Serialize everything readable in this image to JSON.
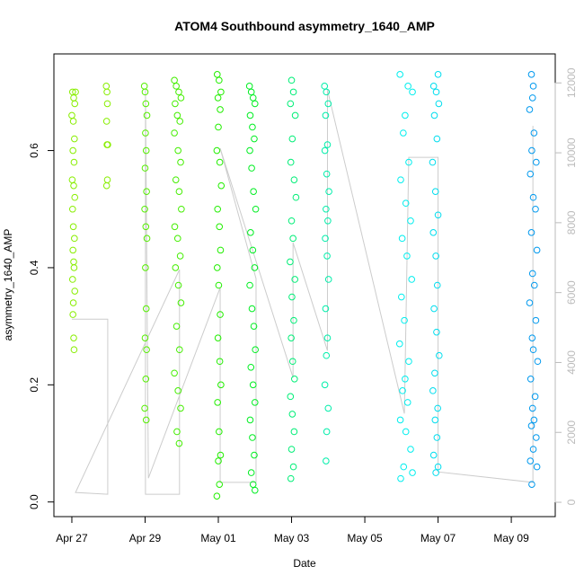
{
  "chart_data": {
    "type": "scatter",
    "title": "ATOM4 Southbound asymmetry_1640_AMP",
    "xlabel": "Date",
    "ylabel": "asymmetry_1640_AMP",
    "xlim": [
      -0.49,
      13.2
    ],
    "ylim": [
      -0.025,
      0.765
    ],
    "y2lim": [
      -410,
      12830
    ],
    "xticks": [
      {
        "value": 0,
        "label": "Apr 27"
      },
      {
        "value": 2,
        "label": "Apr 29"
      },
      {
        "value": 4,
        "label": "May 01"
      },
      {
        "value": 6,
        "label": "May 03"
      },
      {
        "value": 8,
        "label": "May 05"
      },
      {
        "value": 10,
        "label": "May 07"
      },
      {
        "value": 12,
        "label": "May 09"
      }
    ],
    "yticks": [
      {
        "value": 0,
        "label": "0.0"
      },
      0.2,
      0.4,
      0.6
    ],
    "y2ticks": [
      0,
      2000,
      4000,
      6000,
      8000,
      10000,
      12000
    ],
    "y2color": "#bbbbbb",
    "series": [
      {
        "type": "line",
        "axis": "y2",
        "color": "#cccccc",
        "x": [
          0,
          0.98,
          0.98,
          0.1,
          2.94,
          2.94,
          2.01,
          2.01,
          2.09,
          4.05,
          4.05,
          5.03,
          5.03,
          4.05,
          6.04,
          6.04,
          6.98,
          6.98,
          9.08,
          9.2,
          10.0,
          10.0,
          12.59,
          12.59
        ],
        "values": [
          5240,
          5240,
          230,
          280,
          6660,
          230,
          230,
          11800,
          690,
          6140,
          570,
          570,
          6400,
          10130,
          3570,
          7430,
          4340,
          11800,
          2540,
          9870,
          9870,
          870,
          570,
          10770
        ]
      },
      {
        "color": "#88ee00",
        "x": [
          0.02,
          0.05,
          0.08,
          0.0,
          0.04,
          0.07,
          0.03,
          0.06,
          0.01,
          0.05,
          0.08,
          0.02,
          0.04,
          0.07,
          0.03,
          0.05,
          0.06,
          0.02,
          0.08,
          0.04,
          0.03,
          0.05,
          0.06,
          0.1
        ],
        "values": [
          0.7,
          0.69,
          0.68,
          0.66,
          0.65,
          0.62,
          0.6,
          0.58,
          0.55,
          0.54,
          0.52,
          0.5,
          0.47,
          0.45,
          0.43,
          0.41,
          0.4,
          0.38,
          0.36,
          0.34,
          0.32,
          0.28,
          0.26,
          0.7
        ]
      },
      {
        "color": "#88ee00",
        "x": [
          0.94,
          0.96,
          0.97,
          0.95,
          0.96,
          0.98,
          0.97,
          0.95
        ],
        "values": [
          0.71,
          0.7,
          0.68,
          0.65,
          0.61,
          0.61,
          0.55,
          0.54
        ]
      },
      {
        "color": "#55ee00",
        "x": [
          1.98,
          2.0,
          2.02,
          2.05,
          2.01,
          2.03,
          2.0,
          2.04,
          1.99,
          2.02,
          2.05,
          2.01,
          2.03,
          2.0,
          2.04,
          2.02,
          1.99,
          2.03
        ],
        "values": [
          0.71,
          0.7,
          0.68,
          0.66,
          0.63,
          0.6,
          0.57,
          0.53,
          0.5,
          0.47,
          0.45,
          0.4,
          0.33,
          0.28,
          0.26,
          0.21,
          0.16,
          0.14
        ]
      },
      {
        "color": "#44ee00",
        "x": [
          2.8,
          2.85,
          2.92,
          2.98,
          2.82,
          2.88,
          2.95,
          2.8,
          2.9,
          2.97,
          2.84,
          2.93,
          2.99,
          2.81,
          2.89,
          2.96,
          2.83,
          2.91,
          2.98,
          2.86,
          2.94,
          2.8,
          2.9,
          2.97,
          2.87,
          2.93
        ],
        "values": [
          0.72,
          0.71,
          0.7,
          0.69,
          0.68,
          0.66,
          0.65,
          0.63,
          0.6,
          0.58,
          0.55,
          0.53,
          0.5,
          0.47,
          0.45,
          0.42,
          0.4,
          0.37,
          0.34,
          0.3,
          0.26,
          0.22,
          0.19,
          0.16,
          0.12,
          0.1
        ]
      },
      {
        "color": "#22ee00",
        "x": [
          3.97,
          4.02,
          4.07,
          3.99,
          4.05,
          4.0,
          3.96,
          4.04,
          4.08,
          3.98,
          4.03,
          4.06,
          3.97,
          4.01,
          4.05,
          3.99,
          4.04,
          4.07,
          3.98,
          4.02,
          4.06,
          4.0,
          4.03,
          3.96
        ],
        "values": [
          0.73,
          0.72,
          0.7,
          0.69,
          0.67,
          0.64,
          0.6,
          0.58,
          0.54,
          0.5,
          0.47,
          0.43,
          0.4,
          0.37,
          0.32,
          0.28,
          0.24,
          0.2,
          0.17,
          0.12,
          0.08,
          0.07,
          0.03,
          0.01
        ]
      },
      {
        "color": "#00ee22",
        "x": [
          4.85,
          4.9,
          4.95,
          5.0,
          4.87,
          4.93,
          4.98,
          4.86,
          4.91,
          4.96,
          5.02,
          4.88,
          4.94,
          4.99,
          4.86,
          4.92,
          4.97,
          5.01,
          4.89,
          4.95,
          5.0,
          4.87,
          4.93,
          4.98,
          4.9,
          4.95,
          5.0
        ],
        "values": [
          0.71,
          0.7,
          0.69,
          0.68,
          0.66,
          0.64,
          0.62,
          0.6,
          0.57,
          0.53,
          0.5,
          0.46,
          0.43,
          0.4,
          0.37,
          0.33,
          0.3,
          0.26,
          0.23,
          0.2,
          0.17,
          0.14,
          0.11,
          0.08,
          0.05,
          0.03,
          0.02
        ]
      },
      {
        "color": "#00ee77",
        "x": [
          6.0,
          6.05,
          5.97,
          6.1,
          6.02,
          5.98,
          6.07,
          6.12,
          6.0,
          6.04,
          5.96,
          6.09,
          6.01,
          6.06,
          5.99,
          6.03,
          6.08,
          5.97,
          6.02,
          6.07,
          6.0,
          6.05,
          5.98
        ],
        "values": [
          0.72,
          0.7,
          0.68,
          0.66,
          0.62,
          0.58,
          0.55,
          0.52,
          0.48,
          0.45,
          0.41,
          0.38,
          0.35,
          0.31,
          0.28,
          0.24,
          0.21,
          0.18,
          0.15,
          0.12,
          0.09,
          0.06,
          0.04
        ]
      },
      {
        "color": "#00eeaa",
        "x": [
          6.9,
          6.95,
          7.0,
          6.93,
          6.98,
          6.91,
          6.96,
          7.02,
          6.94,
          6.99,
          6.92,
          6.97,
          7.01,
          6.93,
          6.98,
          6.95,
          6.91,
          7.0,
          6.96,
          6.94
        ],
        "values": [
          0.71,
          0.7,
          0.68,
          0.66,
          0.61,
          0.6,
          0.56,
          0.53,
          0.5,
          0.48,
          0.45,
          0.42,
          0.38,
          0.33,
          0.28,
          0.25,
          0.2,
          0.16,
          0.12,
          0.07
        ]
      },
      {
        "color": "#00eeee",
        "x": [
          8.96,
          9.18,
          9.3,
          9.1,
          9.05,
          9.2,
          8.98,
          9.12,
          9.25,
          9.02,
          9.15,
          9.28,
          9.0,
          9.08,
          8.95,
          9.2,
          9.1,
          9.03,
          9.17,
          8.97,
          9.12,
          9.25,
          9.06,
          9.3,
          8.98
        ],
        "values": [
          0.73,
          0.71,
          0.7,
          0.66,
          0.63,
          0.58,
          0.55,
          0.51,
          0.48,
          0.45,
          0.42,
          0.38,
          0.35,
          0.31,
          0.27,
          0.24,
          0.21,
          0.19,
          0.17,
          0.14,
          0.12,
          0.09,
          0.06,
          0.05,
          0.04
        ]
      },
      {
        "color": "#00ddee",
        "x": [
          10.0,
          9.88,
          9.95,
          10.02,
          9.9,
          9.97,
          9.85,
          9.93,
          10.0,
          9.87,
          9.94,
          9.98,
          9.89,
          9.96,
          10.03,
          9.91,
          9.86,
          9.99,
          9.92,
          9.97,
          9.88,
          10.0,
          9.94
        ],
        "values": [
          0.73,
          0.71,
          0.7,
          0.68,
          0.66,
          0.62,
          0.58,
          0.53,
          0.49,
          0.46,
          0.42,
          0.37,
          0.33,
          0.29,
          0.25,
          0.22,
          0.19,
          0.16,
          0.14,
          0.11,
          0.08,
          0.06,
          0.05
        ]
      },
      {
        "color": "#0099ee",
        "x": [
          12.55,
          12.6,
          12.58,
          12.5,
          12.62,
          12.56,
          12.68,
          12.52,
          12.6,
          12.66,
          12.55,
          12.7,
          12.58,
          12.63,
          12.5,
          12.67,
          12.57,
          12.6,
          12.72,
          12.53,
          12.65,
          12.58,
          12.62,
          12.55,
          12.68,
          12.6,
          12.52,
          12.7,
          12.56
        ],
        "values": [
          0.73,
          0.71,
          0.69,
          0.67,
          0.63,
          0.6,
          0.58,
          0.56,
          0.52,
          0.5,
          0.46,
          0.43,
          0.39,
          0.37,
          0.34,
          0.31,
          0.28,
          0.26,
          0.24,
          0.21,
          0.18,
          0.16,
          0.14,
          0.13,
          0.11,
          0.09,
          0.07,
          0.06,
          0.03
        ]
      }
    ]
  }
}
